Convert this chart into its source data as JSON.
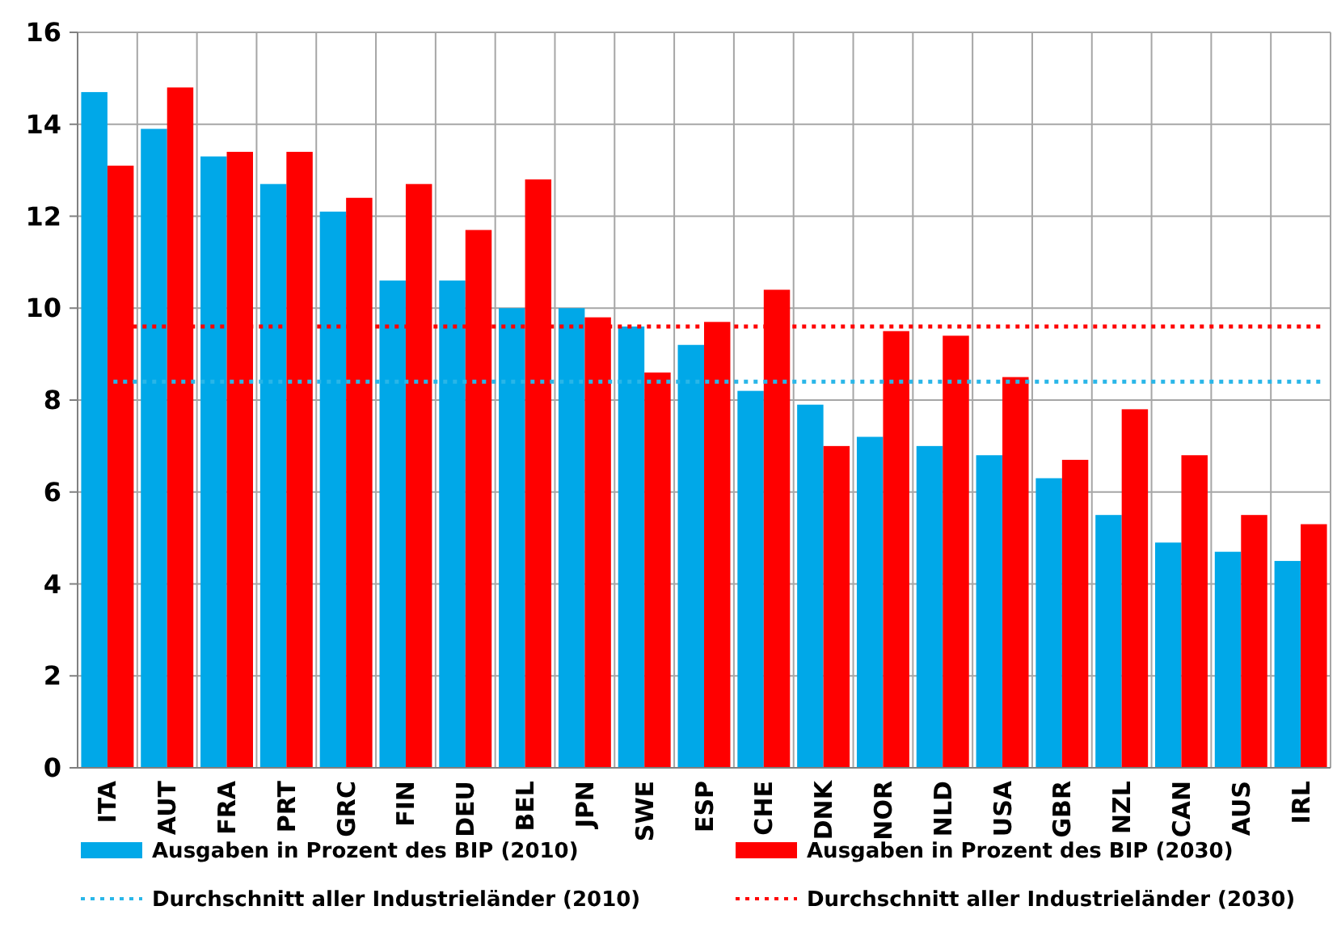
{
  "chart_data": {
    "type": "bar",
    "categories": [
      "ITA",
      "AUT",
      "FRA",
      "PRT",
      "GRC",
      "FIN",
      "DEU",
      "BEL",
      "JPN",
      "SWE",
      "ESP",
      "CHE",
      "DNK",
      "NOR",
      "NLD",
      "USA",
      "GBR",
      "NZL",
      "CAN",
      "AUS",
      "IRL"
    ],
    "series": [
      {
        "name": "Ausgaben in Prozent des BIP (2010)",
        "color": "#00a8e8",
        "values": [
          14.7,
          13.9,
          13.3,
          12.7,
          12.1,
          10.6,
          10.6,
          10.0,
          10.0,
          9.6,
          9.2,
          8.2,
          7.9,
          7.2,
          7.0,
          6.8,
          6.3,
          5.5,
          4.9,
          4.7,
          4.5
        ]
      },
      {
        "name": "Ausgaben in Prozent des BIP (2030)",
        "color": "#ff0000",
        "values": [
          13.1,
          14.8,
          13.4,
          13.4,
          12.4,
          12.7,
          11.7,
          12.8,
          9.8,
          8.6,
          9.7,
          10.4,
          7.0,
          9.5,
          9.4,
          8.5,
          6.7,
          7.8,
          6.8,
          5.5,
          5.3
        ]
      }
    ],
    "ref_lines": [
      {
        "axis": "y",
        "value": 8.4,
        "label": "Durchschnitt aller Industrieländer (2010)",
        "color": "#29b6e8",
        "line_style": "dotted"
      },
      {
        "axis": "y",
        "value": 9.6,
        "label": "Durchschnitt aller Industrieländer (2030)",
        "color": "#ff0000",
        "line_style": "dotted"
      }
    ],
    "ylim": [
      0,
      16
    ],
    "yticks": [
      0,
      2,
      4,
      6,
      8,
      10,
      12,
      14,
      16
    ],
    "grid": true,
    "legend": "bottom"
  }
}
